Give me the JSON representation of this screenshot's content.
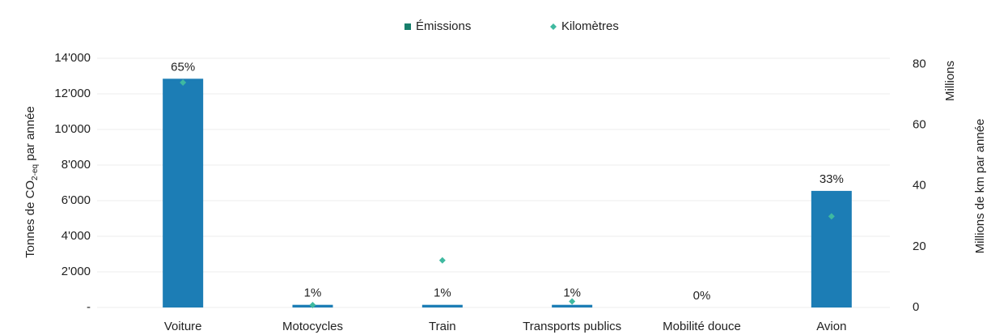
{
  "chart_data": {
    "type": "bar",
    "categories": [
      "Voiture",
      "Motocycles",
      "Train",
      "Transports publics",
      "Mobilité douce",
      "Avion"
    ],
    "series": [
      {
        "name": "Émissions",
        "type": "bar",
        "color": "#1c7db5",
        "legend_color": "#177e6b",
        "values": [
          12850,
          150,
          150,
          150,
          0,
          6550
        ]
      },
      {
        "name": "Kilomètres",
        "type": "scatter",
        "axis": "y2",
        "color": "#3fb9a0",
        "values": [
          74,
          0.8,
          15.5,
          2,
          null,
          30
        ]
      }
    ],
    "annotations": [
      "65%",
      "1%",
      "1%",
      "1%",
      "0%",
      "33%"
    ],
    "ylabel": [
      "Tonnes de CO",
      "2-eq",
      " par année"
    ],
    "y2label": "Millions de km par année",
    "y2unit": "Millions",
    "ylim": [
      0,
      14000
    ],
    "yticks": [
      {
        "value": 0,
        "label": "-"
      },
      {
        "value": 2000,
        "label": "2'000"
      },
      {
        "value": 4000,
        "label": "4'000"
      },
      {
        "value": 6000,
        "label": "6'000"
      },
      {
        "value": 8000,
        "label": "8'000"
      },
      {
        "value": 10000,
        "label": "10'000"
      },
      {
        "value": 12000,
        "label": "12'000"
      },
      {
        "value": 14000,
        "label": "14'000"
      }
    ],
    "y2lim": [
      0,
      82
    ],
    "y2ticks": [
      0,
      20,
      40,
      60,
      80
    ],
    "grid": true,
    "legend": "top"
  }
}
